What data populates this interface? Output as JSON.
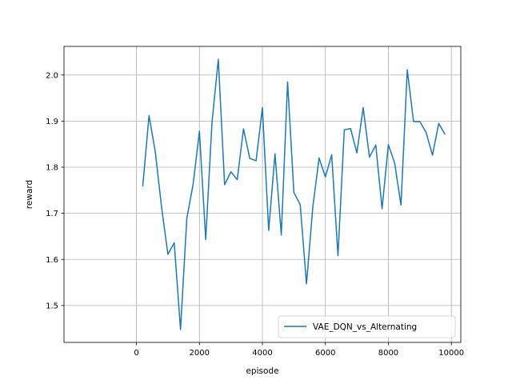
{
  "chart_data": {
    "type": "line",
    "title": "",
    "xlabel": "episode",
    "ylabel": "reward",
    "xlim": [
      -2300,
      10300
    ],
    "ylim": [
      1.42,
      2.062
    ],
    "grid": true,
    "legend_position": "lower-right",
    "x_ticks": [
      0,
      2000,
      4000,
      6000,
      8000,
      10000
    ],
    "x_tick_labels": [
      "0",
      "2000",
      "4000",
      "6000",
      "8000",
      "10000"
    ],
    "y_ticks": [
      1.5,
      1.6,
      1.7,
      1.8,
      1.9,
      2.0
    ],
    "y_tick_labels": [
      "1.5",
      "1.6",
      "1.7",
      "1.8",
      "1.9",
      "2.0"
    ],
    "series": [
      {
        "name": "VAE_DQN_vs_Alternating",
        "color": "#1f77b4",
        "x": [
          200,
          400,
          600,
          800,
          1000,
          1200,
          1400,
          1600,
          1800,
          2000,
          2200,
          2400,
          2600,
          2800,
          3000,
          3200,
          3400,
          3600,
          3800,
          4000,
          4200,
          4400,
          4600,
          4800,
          5000,
          5200,
          5400,
          5600,
          5800,
          6000,
          6200,
          6400,
          6600,
          6800,
          7000,
          7200,
          7400,
          7600,
          7800,
          8000,
          8200,
          8400,
          8600,
          8800,
          9000,
          9200,
          9400,
          9600,
          9800
        ],
        "y": [
          1.758,
          1.912,
          1.833,
          1.712,
          1.611,
          1.636,
          1.448,
          1.689,
          1.763,
          1.878,
          1.643,
          1.898,
          2.034,
          1.762,
          1.79,
          1.773,
          1.883,
          1.819,
          1.814,
          1.929,
          1.663,
          1.829,
          1.653,
          1.985,
          1.745,
          1.719,
          1.547,
          1.713,
          1.82,
          1.779,
          1.827,
          1.608,
          1.881,
          1.884,
          1.831,
          1.929,
          1.822,
          1.848,
          1.71,
          1.849,
          1.809,
          1.718,
          2.011,
          1.899,
          1.899,
          1.875,
          1.826,
          1.895,
          1.871
        ]
      }
    ]
  }
}
